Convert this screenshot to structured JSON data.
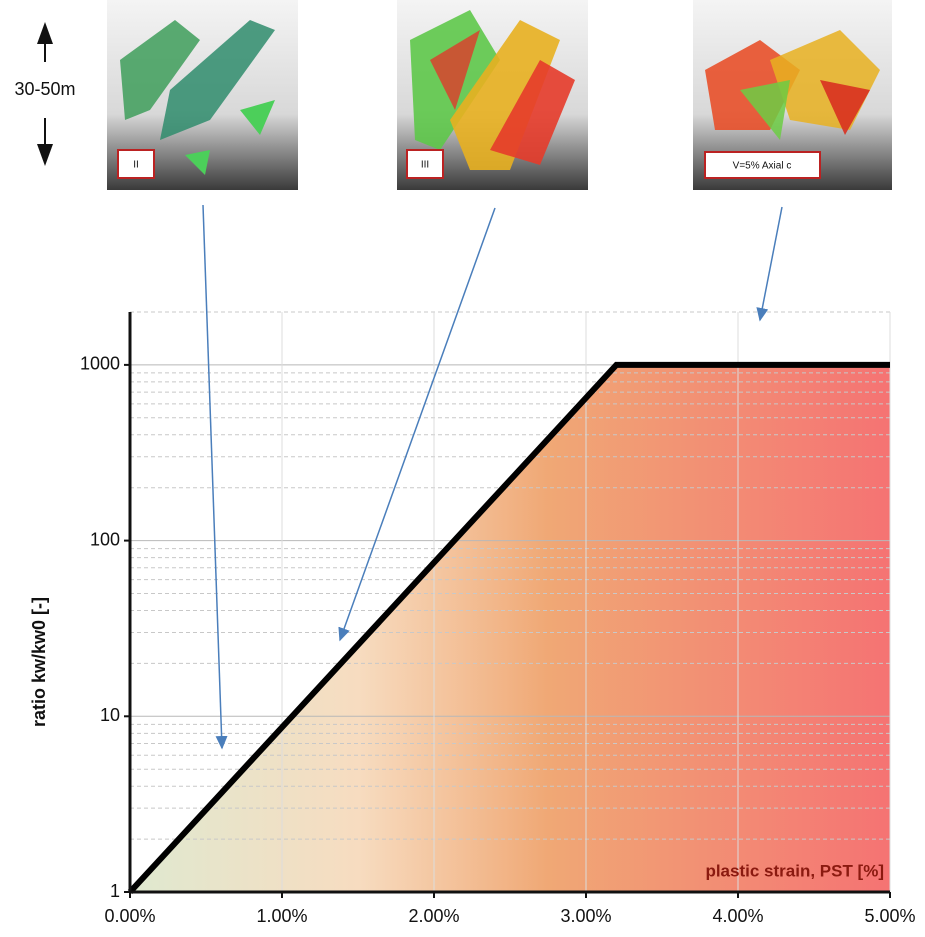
{
  "scale_label": "30-50m",
  "panels": [
    {
      "label": "II"
    },
    {
      "label": "III"
    },
    {
      "label": "V=5% Axial c"
    }
  ],
  "chart_data": {
    "type": "line",
    "y_label": "ratio kw/kw0 [-]",
    "annotation": "plastic strain, PST [%]",
    "x": [
      0,
      3.2,
      5
    ],
    "series": [
      {
        "color": "#000000",
        "values": [
          1,
          1000,
          1000
        ]
      }
    ],
    "xlim": [
      0,
      5
    ],
    "xticks": [
      {
        "value": 0,
        "label": "0.00%"
      },
      {
        "value": 1,
        "label": "1.00%"
      },
      {
        "value": 2,
        "label": "2.00%"
      },
      {
        "value": 3,
        "label": "3.00%"
      },
      {
        "value": 4,
        "label": "4.00%"
      },
      {
        "value": 5,
        "label": "5.00%"
      }
    ],
    "ylim": [
      1,
      2000
    ],
    "log_y": true,
    "yticks": [
      1,
      10,
      100,
      1000
    ],
    "yminorticks": [
      2,
      3,
      4,
      5,
      6,
      7,
      8,
      9,
      20,
      30,
      40,
      50,
      60,
      70,
      80,
      90,
      200,
      300,
      400,
      500,
      600,
      700,
      800,
      900
    ],
    "grid": true
  }
}
